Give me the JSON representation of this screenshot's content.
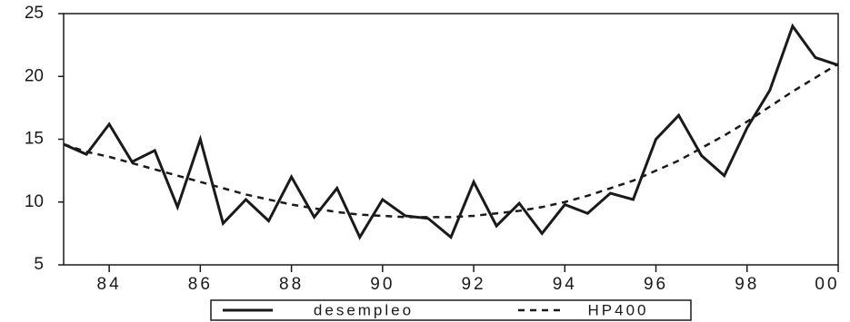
{
  "chart_data": {
    "type": "line",
    "x": [
      1983,
      1983.5,
      1984,
      1984.5,
      1985,
      1985.5,
      1986,
      1986.5,
      1987,
      1987.5,
      1988,
      1988.5,
      1989,
      1989.5,
      1990,
      1990.5,
      1991,
      1991.5,
      1992,
      1992.5,
      1993,
      1993.5,
      1994,
      1994.5,
      1995,
      1995.5,
      1996,
      1996.5,
      1997,
      1997.5,
      1998,
      1998.5,
      1999,
      1999.5,
      2000
    ],
    "series": [
      {
        "name": "desempleo",
        "color": "#1a1a1a",
        "dash": false,
        "values": [
          14.6,
          13.8,
          16.2,
          13.2,
          14.1,
          9.6,
          15.0,
          8.3,
          10.2,
          8.5,
          12.0,
          8.8,
          11.1,
          7.2,
          10.2,
          8.9,
          8.7,
          7.2,
          11.6,
          8.1,
          9.9,
          7.5,
          9.8,
          9.1,
          10.7,
          10.2,
          15.0,
          16.9,
          13.7,
          12.1,
          15.9,
          18.9,
          24.0,
          21.5,
          20.9
        ]
      },
      {
        "name": "HP400",
        "color": "#1a1a1a",
        "dash": true,
        "values": [
          14.6,
          14.0,
          13.6,
          13.1,
          12.6,
          12.1,
          11.6,
          11.1,
          10.6,
          10.2,
          9.8,
          9.5,
          9.2,
          9.0,
          8.9,
          8.8,
          8.8,
          8.8,
          8.9,
          9.1,
          9.3,
          9.6,
          10.0,
          10.5,
          11.1,
          11.7,
          12.5,
          13.3,
          14.3,
          15.3,
          16.4,
          17.6,
          18.8,
          19.9,
          21.0
        ]
      }
    ],
    "xlim": [
      1983,
      2000
    ],
    "xticks": [
      {
        "value": 1984,
        "label": "84"
      },
      {
        "value": 1986,
        "label": "86"
      },
      {
        "value": 1988,
        "label": "88"
      },
      {
        "value": 1990,
        "label": "90"
      },
      {
        "value": 1992,
        "label": "92"
      },
      {
        "value": 1994,
        "label": "94"
      },
      {
        "value": 1996,
        "label": "96"
      },
      {
        "value": 1998,
        "label": "98"
      },
      {
        "value": 2000,
        "label": "00"
      }
    ],
    "ylim": [
      5,
      25
    ],
    "yticks": [
      5,
      10,
      15,
      20,
      25
    ]
  }
}
